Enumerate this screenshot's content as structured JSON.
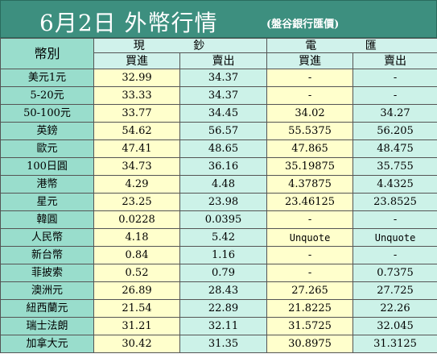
{
  "title": {
    "main": "6月2日 外幣行情",
    "source": "(盤谷銀行匯價)"
  },
  "header": {
    "currency": "幣別",
    "cash": "現  鈔",
    "transfer": "電  匯",
    "buy": "買進",
    "sell": "賣出"
  },
  "rows": [
    {
      "currency": "美元1元",
      "cash_buy": "32.99",
      "cash_sell": "34.37",
      "tt_buy": "-",
      "tt_sell": "-"
    },
    {
      "currency": "5-20元",
      "cash_buy": "33.33",
      "cash_sell": "34.37",
      "tt_buy": "-",
      "tt_sell": "-"
    },
    {
      "currency": "50-100元",
      "cash_buy": "33.77",
      "cash_sell": "34.45",
      "tt_buy": "34.02",
      "tt_sell": "34.27"
    },
    {
      "currency": "英鎊",
      "cash_buy": "54.62",
      "cash_sell": "56.57",
      "tt_buy": "55.5375",
      "tt_sell": "56.205"
    },
    {
      "currency": "歐元",
      "cash_buy": "47.41",
      "cash_sell": "48.65",
      "tt_buy": "47.865",
      "tt_sell": "48.475"
    },
    {
      "currency": "100日圓",
      "cash_buy": "34.73",
      "cash_sell": "36.16",
      "tt_buy": "35.19875",
      "tt_sell": "35.755"
    },
    {
      "currency": "港幣",
      "cash_buy": "4.29",
      "cash_sell": "4.48",
      "tt_buy": "4.37875",
      "tt_sell": "4.4325"
    },
    {
      "currency": "星元",
      "cash_buy": "23.25",
      "cash_sell": "23.98",
      "tt_buy": "23.46125",
      "tt_sell": "23.8525"
    },
    {
      "currency": "韓圓",
      "cash_buy": "0.0228",
      "cash_sell": "0.0395",
      "tt_buy": "-",
      "tt_sell": "-"
    },
    {
      "currency": "人民幣",
      "cash_buy": "4.18",
      "cash_sell": "5.42",
      "tt_buy": "Unquote",
      "tt_sell": "Unquote"
    },
    {
      "currency": "新台幣",
      "cash_buy": "0.84",
      "cash_sell": "1.16",
      "tt_buy": "-",
      "tt_sell": "-"
    },
    {
      "currency": "菲披索",
      "cash_buy": "0.52",
      "cash_sell": "0.79",
      "tt_buy": "-",
      "tt_sell": "0.7375"
    },
    {
      "currency": "澳洲元",
      "cash_buy": "26.89",
      "cash_sell": "28.43",
      "tt_buy": "27.265",
      "tt_sell": "27.725"
    },
    {
      "currency": "紐西蘭元",
      "cash_buy": "21.54",
      "cash_sell": "22.89",
      "tt_buy": "21.8225",
      "tt_sell": "22.26"
    },
    {
      "currency": "瑞士法朗",
      "cash_buy": "31.21",
      "cash_sell": "32.11",
      "tt_buy": "31.5725",
      "tt_sell": "32.045"
    },
    {
      "currency": "加拿大元",
      "cash_buy": "30.42",
      "cash_sell": "31.35",
      "tt_buy": "30.8975",
      "tt_sell": "31.3125"
    }
  ]
}
